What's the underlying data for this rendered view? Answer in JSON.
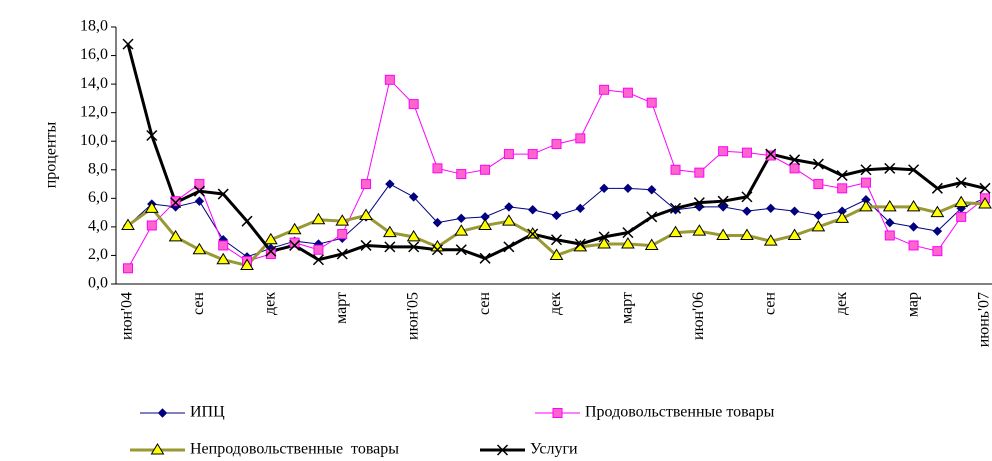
{
  "chart_data": {
    "type": "line",
    "ylabel": "проценты",
    "categories": [
      "июн'04",
      null,
      null,
      "сен",
      null,
      null,
      "дек",
      null,
      null,
      "март",
      null,
      null,
      "июн'05",
      null,
      null,
      "сен",
      null,
      null,
      "дек",
      null,
      null,
      "март",
      null,
      null,
      "июн'06",
      null,
      null,
      "сен",
      null,
      null,
      "дек",
      null,
      null,
      "мар",
      null,
      null,
      "июнь'07"
    ],
    "ylim": [
      0,
      18
    ],
    "yticks": [
      {
        "value": 0,
        "label": "0,0"
      },
      {
        "value": 2,
        "label": "2,0"
      },
      {
        "value": 4,
        "label": "4,0"
      },
      {
        "value": 6,
        "label": "6,0"
      },
      {
        "value": 8,
        "label": "8,0"
      },
      {
        "value": 10,
        "label": "10,0"
      },
      {
        "value": 12,
        "label": "12,0"
      },
      {
        "value": 14,
        "label": "14,0"
      },
      {
        "value": 16,
        "label": "16,0"
      },
      {
        "value": 18,
        "label": "18,0"
      }
    ],
    "grid": false,
    "series": [
      {
        "name": "ИПЦ",
        "color": "#000080",
        "marker": "diamond",
        "values": [
          4.1,
          5.6,
          5.4,
          5.8,
          3.1,
          1.9,
          2.5,
          3.0,
          2.8,
          3.2,
          4.7,
          7.0,
          6.1,
          4.3,
          4.6,
          4.7,
          5.4,
          5.2,
          4.8,
          5.3,
          6.7,
          6.7,
          6.6,
          5.2,
          5.4,
          5.4,
          5.1,
          5.3,
          5.1,
          4.8,
          5.1,
          5.9,
          4.3,
          4.0,
          3.7,
          5.3,
          6.0
        ]
      },
      {
        "name": "Продовольственные товары",
        "color": "#ff00ff",
        "marker": "square",
        "values": [
          1.1,
          4.1,
          5.8,
          7.0,
          2.7,
          1.6,
          2.1,
          2.9,
          2.4,
          3.5,
          7.0,
          14.3,
          12.6,
          8.1,
          7.7,
          8.0,
          9.1,
          9.1,
          9.8,
          10.2,
          13.6,
          13.4,
          12.7,
          8.0,
          7.8,
          9.3,
          9.2,
          9.0,
          8.1,
          7.0,
          6.7,
          7.1,
          3.4,
          2.7,
          2.3,
          4.7,
          6.0
        ]
      },
      {
        "name": "Непродовольственные  товары",
        "color": "#999933",
        "marker": "triangle",
        "values": [
          4.1,
          5.3,
          3.3,
          2.4,
          1.7,
          1.3,
          3.1,
          3.8,
          4.5,
          4.4,
          4.8,
          3.6,
          3.3,
          2.6,
          3.7,
          4.1,
          4.4,
          3.5,
          2.0,
          2.6,
          2.8,
          2.8,
          2.7,
          3.6,
          3.7,
          3.4,
          3.4,
          3.0,
          3.4,
          4.0,
          4.6,
          5.4,
          5.4,
          5.4,
          5.0,
          5.7,
          5.6
        ]
      },
      {
        "name": "Услуги",
        "color": "#000000",
        "marker": "x",
        "values": [
          16.8,
          10.4,
          5.7,
          6.5,
          6.3,
          4.4,
          2.3,
          2.7,
          1.7,
          2.1,
          2.7,
          2.6,
          2.6,
          2.4,
          2.4,
          1.8,
          2.6,
          3.5,
          3.1,
          2.8,
          3.3,
          3.6,
          4.7,
          5.3,
          5.7,
          5.8,
          6.1,
          9.1,
          8.7,
          8.4,
          7.6,
          8.0,
          8.1,
          8.0,
          6.7,
          7.1,
          6.7
        ]
      }
    ]
  }
}
